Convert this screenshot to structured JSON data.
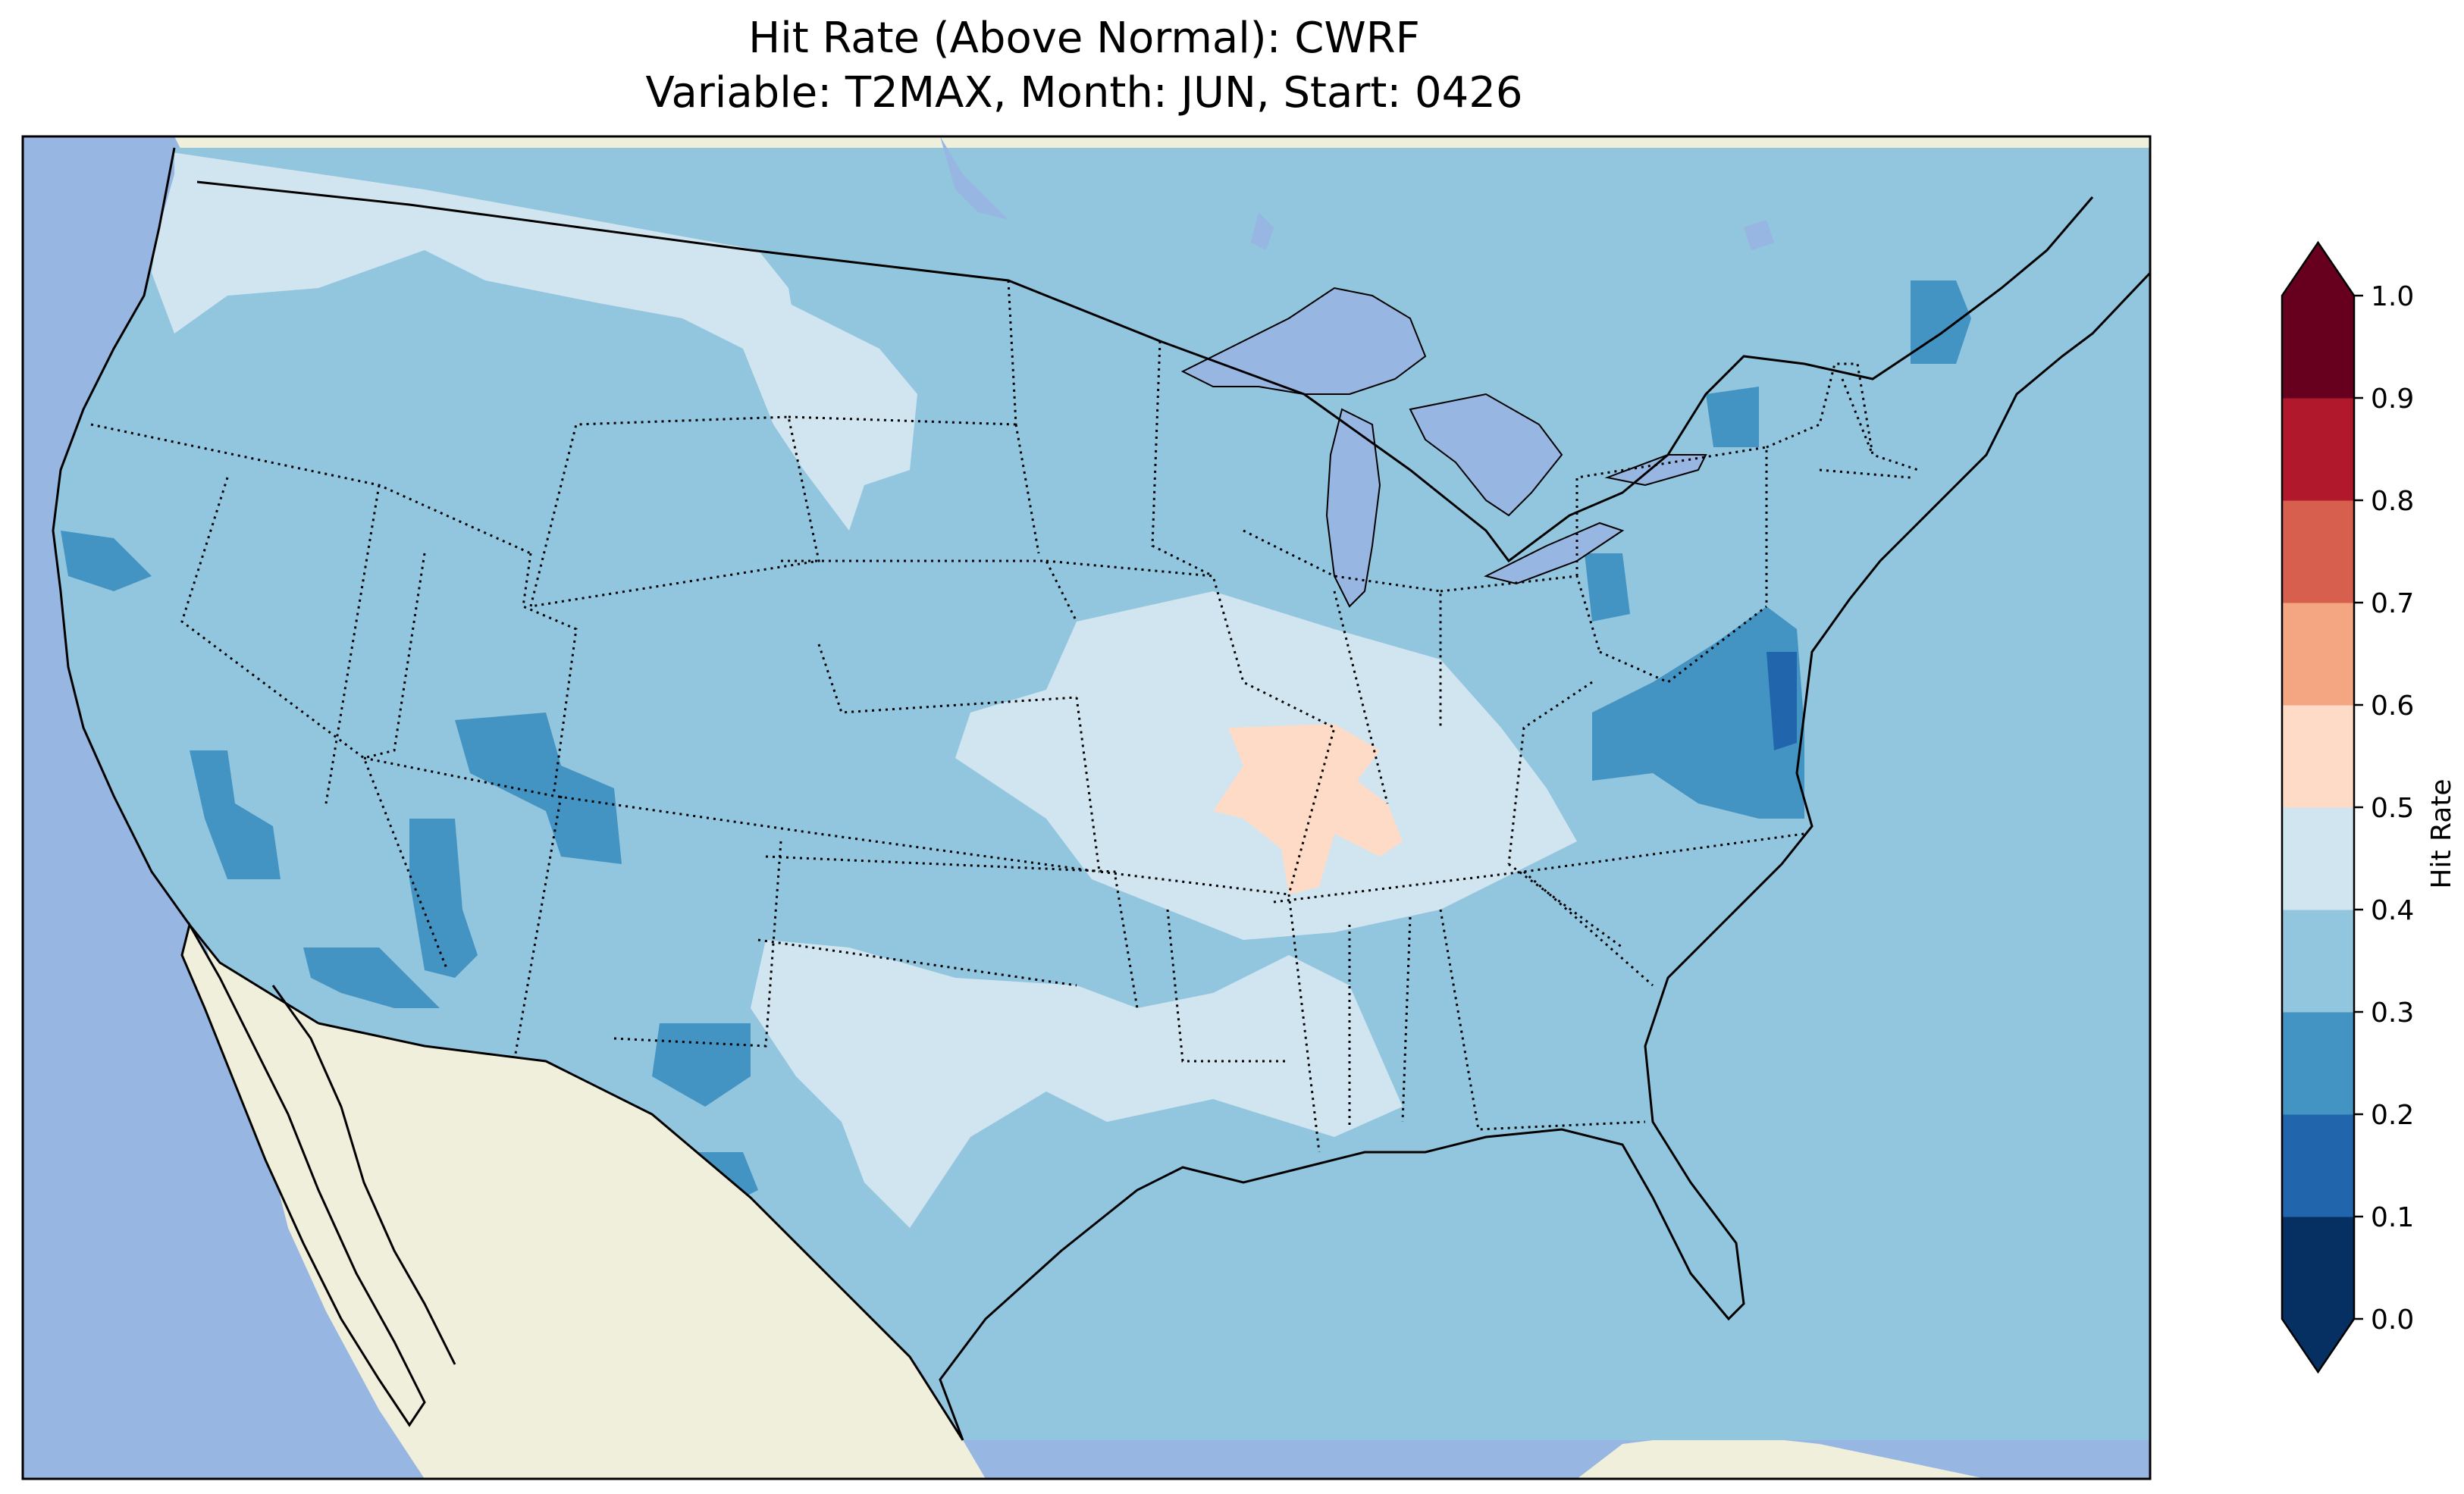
{
  "title": {
    "line1": "Hit Rate (Above Normal): CWRF",
    "line2": "Variable: T2MAX, Month: JUN, Start: 0426"
  },
  "colors": {
    "ocean": "#97b6e1",
    "land": "#efefdb",
    "lake": "#97b6e1",
    "border": "#000000"
  },
  "colorbar": {
    "label": "Hit Rate",
    "ticks": [
      "0.0",
      "0.1",
      "0.2",
      "0.3",
      "0.4",
      "0.5",
      "0.6",
      "0.7",
      "0.8",
      "0.9",
      "1.0"
    ],
    "bins": [
      {
        "range": [
          0.0,
          0.1
        ],
        "color": "#053061"
      },
      {
        "range": [
          0.1,
          0.2
        ],
        "color": "#2166ac"
      },
      {
        "range": [
          0.2,
          0.3
        ],
        "color": "#4393c3"
      },
      {
        "range": [
          0.3,
          0.4
        ],
        "color": "#92c5de"
      },
      {
        "range": [
          0.4,
          0.5
        ],
        "color": "#d1e5f0"
      },
      {
        "range": [
          0.5,
          0.6
        ],
        "color": "#fddbc7"
      },
      {
        "range": [
          0.6,
          0.7
        ],
        "color": "#f4a582"
      },
      {
        "range": [
          0.7,
          0.8
        ],
        "color": "#d6604d"
      },
      {
        "range": [
          0.8,
          0.9
        ],
        "color": "#b2182b"
      },
      {
        "range": [
          0.9,
          1.0
        ],
        "color": "#67001f"
      }
    ],
    "extend_min_color": "#053061",
    "extend_max_color": "#67001f"
  },
  "map_data": {
    "background_hit_rate_bin": [
      0.3,
      0.4
    ],
    "regions": [
      {
        "name": "pacific-northwest",
        "bin": [
          0.4,
          0.5
        ]
      },
      {
        "name": "northern-rockies-plains",
        "bin": [
          0.4,
          0.5
        ]
      },
      {
        "name": "central-mississippi-valley",
        "bin": [
          0.4,
          0.5
        ]
      },
      {
        "name": "southern-plains",
        "bin": [
          0.4,
          0.5
        ]
      },
      {
        "name": "lower-mississippi",
        "bin": [
          0.4,
          0.5
        ]
      },
      {
        "name": "illinois-kentucky",
        "bin": [
          0.5,
          0.6
        ]
      },
      {
        "name": "southwest",
        "bin": [
          0.2,
          0.3
        ]
      },
      {
        "name": "colorado-plateau",
        "bin": [
          0.2,
          0.3
        ]
      },
      {
        "name": "virginia-mid-atlantic",
        "bin": [
          0.2,
          0.3
        ]
      },
      {
        "name": "maine",
        "bin": [
          0.2,
          0.3
        ]
      },
      {
        "name": "new-york",
        "bin": [
          0.2,
          0.3
        ]
      },
      {
        "name": "west-texas",
        "bin": [
          0.2,
          0.3
        ]
      },
      {
        "name": "northern-california",
        "bin": [
          0.2,
          0.3
        ]
      },
      {
        "name": "chesapeake",
        "bin": [
          0.1,
          0.2
        ]
      }
    ]
  }
}
